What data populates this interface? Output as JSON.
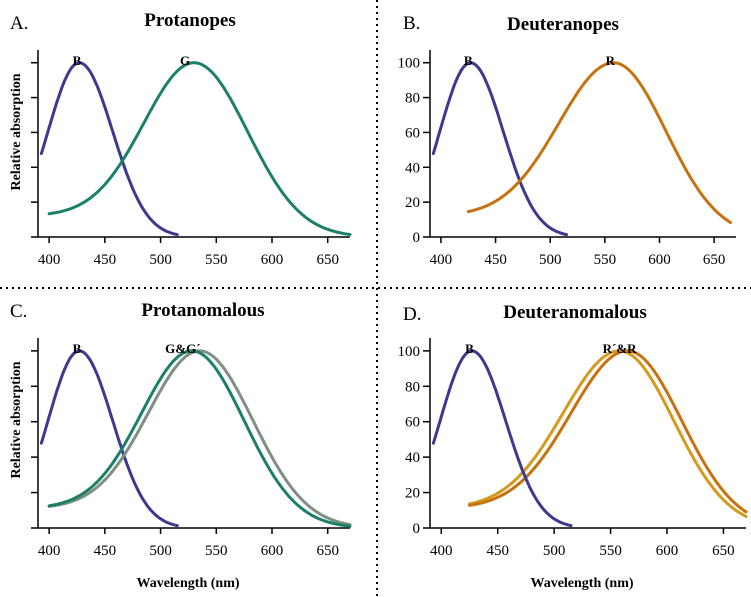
{
  "chart_data": [
    {
      "id": "A",
      "type": "line",
      "panel_letter": "A.",
      "title": "Protanopes",
      "xlabel": "",
      "ylabel": "Relative absorption",
      "xlim": [
        390,
        670
      ],
      "ylim": [
        0,
        105
      ],
      "x_ticks": [
        400,
        450,
        500,
        550,
        600,
        650
      ],
      "x_tick_labels": [
        "400",
        "450",
        "500",
        "550",
        "600",
        "650"
      ],
      "y_ticks": [
        0,
        20,
        40,
        60,
        80,
        100
      ],
      "y_tick_labels": [
        "",
        "",
        "",
        "",
        "",
        ""
      ],
      "series": [
        {
          "name": "B",
          "color": "#3b3a8f",
          "peak": 427,
          "xmin": 393,
          "xmax": 515,
          "floor": 0,
          "sigma_left": 28,
          "sigma_right": 30,
          "peak_value": 100
        },
        {
          "name": "G",
          "color": "#1c7f6a",
          "peak": 530,
          "xmin": 400,
          "xmax": 670,
          "floor": 12,
          "sigma_left": 45,
          "sigma_right": 48,
          "peak_value": 100
        }
      ],
      "curve_labels": [
        {
          "text": "B",
          "x": 425
        },
        {
          "text": "G",
          "x": 522
        }
      ]
    },
    {
      "id": "B",
      "type": "line",
      "panel_letter": "B.",
      "title": "Deuteranopes",
      "xlabel": "",
      "ylabel": "",
      "xlim": [
        390,
        670
      ],
      "ylim": [
        0,
        105
      ],
      "x_ticks": [
        400,
        450,
        500,
        550,
        600,
        650
      ],
      "x_tick_labels": [
        "400",
        "450",
        "500",
        "550",
        "600",
        "650"
      ],
      "y_ticks": [
        0,
        20,
        40,
        60,
        80,
        100
      ],
      "y_tick_labels": [
        "0",
        "20",
        "40",
        "60",
        "80",
        "100"
      ],
      "series": [
        {
          "name": "B",
          "color": "#3b3a8f",
          "peak": 427,
          "xmin": 393,
          "xmax": 515,
          "floor": 0,
          "sigma_left": 28,
          "sigma_right": 30,
          "peak_value": 100
        },
        {
          "name": "R",
          "color": "#c7720f",
          "peak": 558,
          "xmin": 425,
          "xmax": 665,
          "floor": 12,
          "sigma_left": 50,
          "sigma_right": 48,
          "peak_value": 100
        }
      ],
      "curve_labels": [
        {
          "text": "B",
          "x": 425
        },
        {
          "text": "R",
          "x": 555
        }
      ]
    },
    {
      "id": "C",
      "type": "line",
      "panel_letter": "C.",
      "title": "Protanomalous",
      "xlabel": "Wavelength (nm)",
      "ylabel": "Relative absorption",
      "xlim": [
        390,
        670
      ],
      "ylim": [
        0,
        105
      ],
      "x_ticks": [
        400,
        450,
        500,
        550,
        600,
        650
      ],
      "x_tick_labels": [
        "400",
        "450",
        "500",
        "550",
        "600",
        "650"
      ],
      "y_ticks": [
        0,
        20,
        40,
        60,
        80,
        100
      ],
      "y_tick_labels": [
        "",
        "",
        "",
        "",
        "",
        ""
      ],
      "series": [
        {
          "name": "B",
          "color": "#3b3a8f",
          "peak": 427,
          "xmin": 393,
          "xmax": 515,
          "floor": 0,
          "sigma_left": 28,
          "sigma_right": 30,
          "peak_value": 100
        },
        {
          "name": "G'",
          "color": "#7f8f80",
          "peak": 535,
          "xmin": 400,
          "xmax": 670,
          "floor": 11,
          "sigma_left": 46,
          "sigma_right": 48,
          "peak_value": 100
        },
        {
          "name": "G",
          "color": "#1c7f6a",
          "peak": 528,
          "xmin": 400,
          "xmax": 670,
          "floor": 11,
          "sigma_left": 45,
          "sigma_right": 47,
          "peak_value": 100
        }
      ],
      "curve_labels": [
        {
          "text": "B",
          "x": 425
        },
        {
          "text": "G&G´",
          "x": 520
        }
      ]
    },
    {
      "id": "D",
      "type": "line",
      "panel_letter": "D.",
      "title": "Deuteranomalous",
      "xlabel": "Wavelength (nm)",
      "ylabel": "",
      "xlim": [
        390,
        670
      ],
      "ylim": [
        0,
        105
      ],
      "x_ticks": [
        400,
        450,
        500,
        550,
        600,
        650
      ],
      "x_tick_labels": [
        "400",
        "450",
        "500",
        "550",
        "600",
        "650"
      ],
      "y_ticks": [
        0,
        20,
        40,
        60,
        80,
        100
      ],
      "y_tick_labels": [
        "0",
        "20",
        "40",
        "60",
        "80",
        "100"
      ],
      "series": [
        {
          "name": "R'",
          "color": "#d49a1c",
          "peak": 558,
          "xmin": 425,
          "xmax": 670,
          "floor": 11,
          "sigma_left": 50,
          "sigma_right": 48,
          "peak_value": 100
        },
        {
          "name": "R",
          "color": "#c7720f",
          "peak": 565,
          "xmin": 425,
          "xmax": 670,
          "floor": 11,
          "sigma_left": 50,
          "sigma_right": 48,
          "peak_value": 100
        },
        {
          "name": "B",
          "color": "#3b3a8f",
          "peak": 427,
          "xmin": 393,
          "xmax": 515,
          "floor": 0,
          "sigma_left": 28,
          "sigma_right": 30,
          "peak_value": 100
        }
      ],
      "curve_labels": [
        {
          "text": "B",
          "x": 425
        },
        {
          "text": "R´&R",
          "x": 558
        }
      ]
    }
  ]
}
